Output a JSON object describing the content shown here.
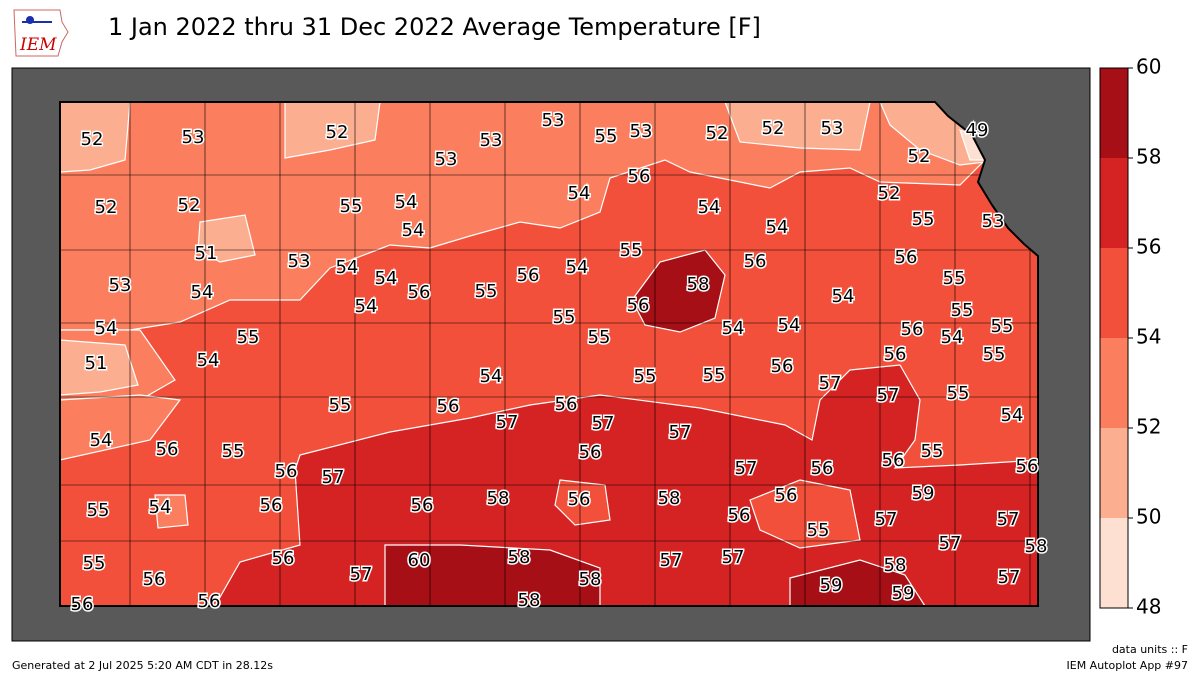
{
  "header": {
    "title": "1 Jan 2022 thru 31 Dec 2022 Average Temperature [F]",
    "logo": "IEM"
  },
  "colorbar": {
    "levels": [
      48,
      50,
      52,
      54,
      56,
      58,
      60
    ],
    "colors": [
      "#fee0d2",
      "#fcae91",
      "#fb7f5e",
      "#f2503b",
      "#d42322",
      "#a50f15"
    ]
  },
  "stations": {
    "values": [
      52,
      53,
      52,
      53,
      53,
      53,
      55,
      53,
      52,
      52,
      53,
      49,
      52,
      52,
      52,
      55,
      54,
      54,
      54,
      56,
      54,
      54,
      52,
      55,
      53,
      51,
      53,
      54,
      54,
      56,
      55,
      56,
      54,
      55,
      56,
      56,
      55,
      53,
      54,
      54,
      58,
      56,
      54,
      55,
      55,
      55,
      54,
      54,
      56,
      54,
      55,
      54,
      51,
      54,
      55,
      56,
      55,
      54,
      55,
      55,
      56,
      57,
      57,
      55,
      55,
      56,
      57,
      56,
      57,
      57,
      54,
      56,
      55,
      56,
      54,
      56,
      55,
      56,
      56,
      57,
      57,
      56,
      59,
      58,
      56,
      56,
      58,
      56,
      55,
      54,
      56,
      56,
      55,
      57,
      57,
      57,
      58,
      55,
      56,
      56,
      57,
      60,
      58,
      58,
      57,
      57,
      59,
      58,
      57,
      59,
      56,
      56,
      58
    ]
  },
  "footer": {
    "units": "data units :: F",
    "generated": "Generated at 2 Jul 2025 5:20 AM CDT in 28.12s",
    "app": "IEM Autoplot App #97"
  }
}
